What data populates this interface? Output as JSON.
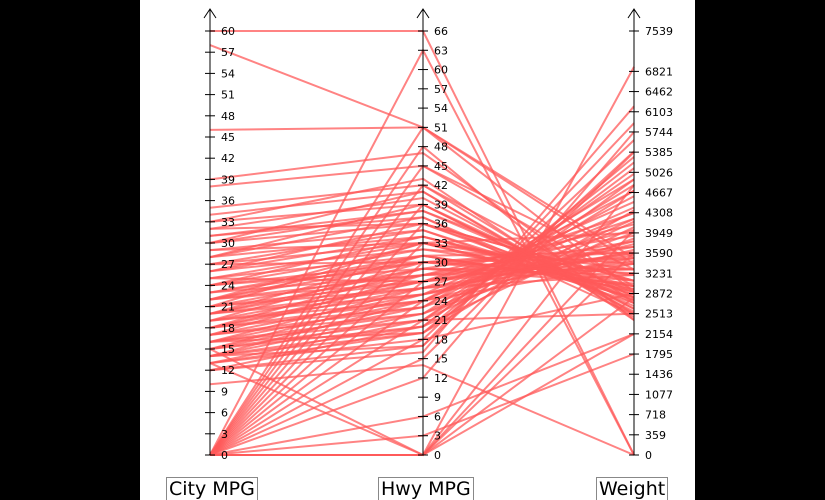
{
  "chart_data": {
    "type": "parallel_coordinates",
    "line_color": "#ff5a5a",
    "axes": [
      {
        "label": "City MPG",
        "range": [
          0,
          60
        ],
        "ticks": [
          "0",
          "3",
          "6",
          "9",
          "12",
          "15",
          "18",
          "21",
          "24",
          "27",
          "30",
          "33",
          "36",
          "39",
          "42",
          "45",
          "48",
          "51",
          "54",
          "57",
          "60"
        ]
      },
      {
        "label": "Hwy MPG",
        "range": [
          0,
          66
        ],
        "ticks": [
          "0",
          "3",
          "6",
          "9",
          "12",
          "15",
          "18",
          "21",
          "24",
          "27",
          "30",
          "33",
          "36",
          "39",
          "42",
          "45",
          "48",
          "51",
          "54",
          "57",
          "60",
          "63",
          "66"
        ]
      },
      {
        "label": "Weight",
        "range": [
          0,
          7539
        ],
        "ticks": [
          "0",
          "359",
          "718",
          "1077",
          "1436",
          "1795",
          "2154",
          "2513",
          "2872",
          "3231",
          "3590",
          "3949",
          "4308",
          "4667",
          "5026",
          "5385",
          "5744",
          "6103",
          "6462",
          "6821",
          "7539"
        ]
      }
    ],
    "records": [
      [
        60,
        66,
        0
      ],
      [
        58,
        51,
        3400
      ],
      [
        46,
        51,
        2900
      ],
      [
        0,
        0,
        6900
      ],
      [
        0,
        0,
        4000
      ],
      [
        0,
        0,
        2800
      ],
      [
        0,
        0,
        2154
      ],
      [
        15,
        0,
        4800
      ],
      [
        13,
        0,
        3600
      ],
      [
        38,
        45,
        3000
      ],
      [
        35,
        42,
        2800
      ],
      [
        39,
        47,
        2700
      ],
      [
        33,
        43,
        2400
      ],
      [
        32,
        40,
        2600
      ],
      [
        31,
        38,
        2900
      ],
      [
        30,
        36,
        3100
      ],
      [
        29,
        33,
        3300
      ],
      [
        28,
        37,
        2500
      ],
      [
        27,
        35,
        2700
      ],
      [
        26,
        34,
        3000
      ],
      [
        25,
        33,
        3200
      ],
      [
        24,
        32,
        3400
      ],
      [
        24,
        30,
        3500
      ],
      [
        23,
        31,
        3600
      ],
      [
        22,
        30,
        3700
      ],
      [
        22,
        28,
        3800
      ],
      [
        21,
        29,
        3900
      ],
      [
        21,
        27,
        4000
      ],
      [
        20,
        28,
        4100
      ],
      [
        20,
        26,
        4200
      ],
      [
        19,
        27,
        4300
      ],
      [
        19,
        25,
        3500
      ],
      [
        18,
        26,
        3600
      ],
      [
        18,
        24,
        4400
      ],
      [
        17,
        25,
        4500
      ],
      [
        17,
        23,
        4600
      ],
      [
        16,
        24,
        4700
      ],
      [
        16,
        22,
        4800
      ],
      [
        15,
        23,
        4900
      ],
      [
        15,
        21,
        5000
      ],
      [
        14,
        22,
        4200
      ],
      [
        14,
        20,
        5100
      ],
      [
        13,
        19,
        5300
      ],
      [
        13,
        18,
        5600
      ],
      [
        12,
        17,
        5900
      ],
      [
        12,
        16,
        6200
      ],
      [
        10,
        14,
        0
      ],
      [
        23,
        30,
        3300
      ],
      [
        25,
        31,
        3000
      ],
      [
        27,
        33,
        2900
      ],
      [
        29,
        35,
        2800
      ],
      [
        31,
        37,
        2650
      ],
      [
        33,
        39,
        2550
      ],
      [
        34,
        41,
        2450
      ],
      [
        26,
        32,
        3100
      ],
      [
        24,
        29,
        3300
      ],
      [
        22,
        27,
        3550
      ],
      [
        20,
        25,
        3750
      ],
      [
        18,
        23,
        3950
      ],
      [
        16,
        21,
        4150
      ],
      [
        14,
        19,
        4350
      ],
      [
        21,
        26,
        3450
      ],
      [
        19,
        24,
        3650
      ],
      [
        17,
        22,
        3850
      ],
      [
        15,
        20,
        4050
      ],
      [
        20,
        29,
        3200
      ],
      [
        18,
        27,
        3400
      ],
      [
        22,
        31,
        3000
      ],
      [
        28,
        34,
        2950
      ],
      [
        30,
        38,
        2750
      ],
      [
        32,
        36,
        2850
      ],
      [
        23,
        28,
        3500
      ],
      [
        25,
        27,
        3700
      ],
      [
        27,
        30,
        3600
      ],
      [
        16,
        26,
        3200
      ],
      [
        14,
        24,
        3400
      ],
      [
        19,
        30,
        3100
      ],
      [
        21,
        33,
        2900
      ],
      [
        17,
        28,
        3300
      ],
      [
        13,
        21,
        4700
      ],
      [
        12,
        20,
        5200
      ],
      [
        15,
        25,
        3800
      ],
      [
        24,
        34,
        2850
      ],
      [
        26,
        36,
        2750
      ],
      [
        20,
        31,
        2950
      ],
      [
        18,
        29,
        3050
      ],
      [
        22,
        33,
        2800
      ],
      [
        28,
        39,
        2600
      ],
      [
        30,
        41,
        2500
      ],
      [
        16,
        19,
        4900
      ],
      [
        14,
        17,
        5400
      ],
      [
        0,
        63,
        0
      ],
      [
        0,
        3,
        1795
      ],
      [
        0,
        6,
        2154
      ],
      [
        0,
        42,
        2513
      ],
      [
        0,
        15,
        5385
      ],
      [
        0,
        12,
        5744
      ],
      [
        0,
        48,
        2400
      ],
      [
        0,
        30,
        3231
      ],
      [
        0,
        27,
        3590
      ],
      [
        0,
        33,
        3949
      ],
      [
        0,
        24,
        4308
      ],
      [
        0,
        21,
        2513
      ],
      [
        0,
        18,
        2872
      ],
      [
        0,
        36,
        3100
      ],
      [
        0,
        39,
        2700
      ],
      [
        0,
        45,
        3300
      ],
      [
        0,
        51,
        3500
      ]
    ]
  }
}
